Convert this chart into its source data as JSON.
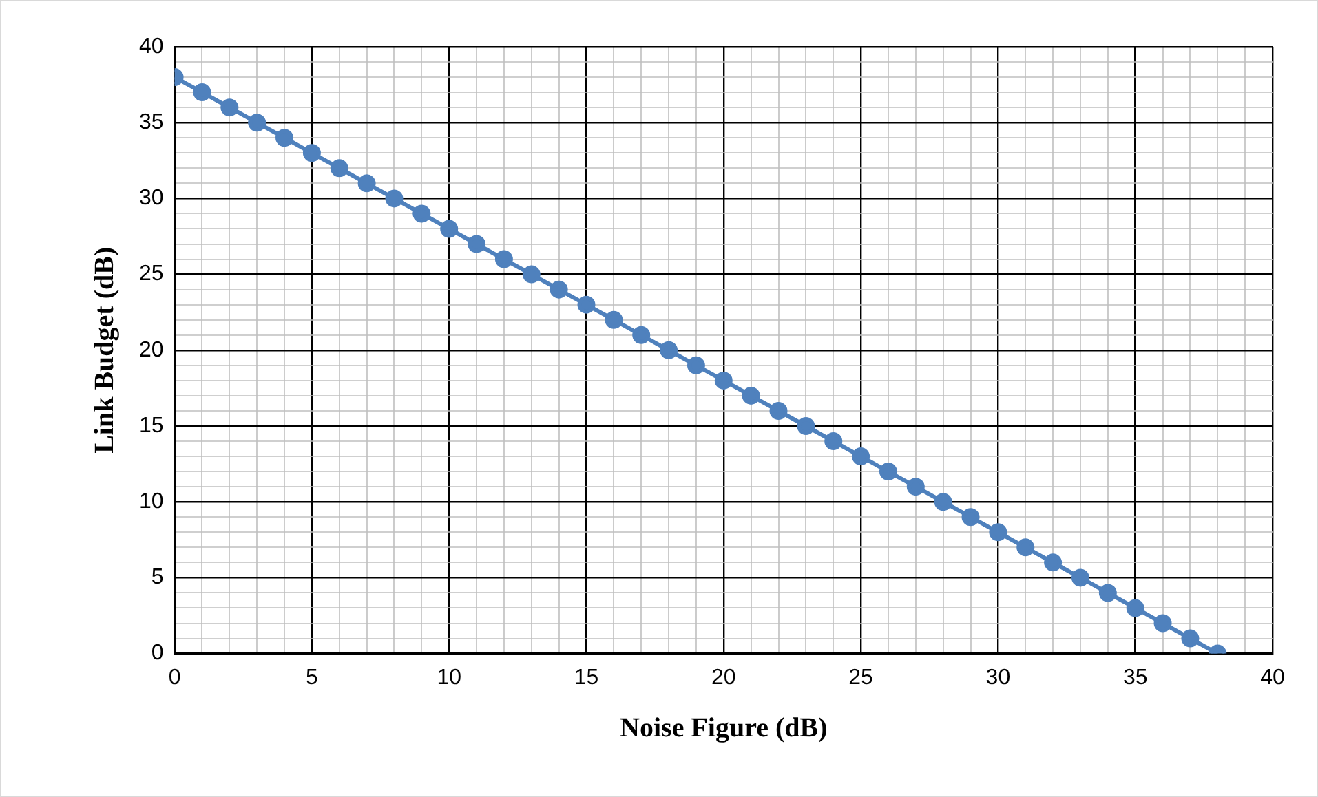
{
  "chart_data": {
    "type": "line",
    "xlabel": "Noise Figure (dB)",
    "ylabel": "Link Budget (dB)",
    "x": [
      0,
      1,
      2,
      3,
      4,
      5,
      6,
      7,
      8,
      9,
      10,
      11,
      12,
      13,
      14,
      15,
      16,
      17,
      18,
      19,
      20,
      21,
      22,
      23,
      24,
      25,
      26,
      27,
      28,
      29,
      30,
      31,
      32,
      33,
      34,
      35,
      36,
      37,
      38
    ],
    "series": [
      {
        "color": "#4f81bd",
        "values": [
          38,
          37,
          36,
          35,
          34,
          33,
          32,
          31,
          30,
          29,
          28,
          27,
          26,
          25,
          24,
          23,
          22,
          21,
          20,
          19,
          18,
          17,
          16,
          15,
          14,
          13,
          12,
          11,
          10,
          9,
          8,
          7,
          6,
          5,
          4,
          3,
          2,
          1,
          0
        ]
      }
    ],
    "xlim": [
      0,
      40
    ],
    "ylim": [
      0,
      40
    ],
    "xticks": [
      0,
      {
        "value": 1,
        "label": null
      },
      {
        "value": 2,
        "label": null
      },
      {
        "value": 3,
        "label": null
      },
      {
        "value": 4,
        "label": null
      },
      5,
      {
        "value": 6,
        "label": null
      },
      {
        "value": 7,
        "label": null
      },
      {
        "value": 8,
        "label": null
      },
      {
        "value": 9,
        "label": null
      },
      10,
      {
        "value": 11,
        "label": null
      },
      {
        "value": 12,
        "label": null
      },
      {
        "value": 13,
        "label": null
      },
      {
        "value": 14,
        "label": null
      },
      15,
      {
        "value": 16,
        "label": null
      },
      {
        "value": 17,
        "label": null
      },
      {
        "value": 18,
        "label": null
      },
      {
        "value": 19,
        "label": null
      },
      20,
      {
        "value": 21,
        "label": null
      },
      {
        "value": 22,
        "label": null
      },
      {
        "value": 23,
        "label": null
      },
      {
        "value": 24,
        "label": null
      },
      25,
      {
        "value": 26,
        "label": null
      },
      {
        "value": 27,
        "label": null
      },
      {
        "value": 28,
        "label": null
      },
      {
        "value": 29,
        "label": null
      },
      30,
      {
        "value": 31,
        "label": null
      },
      {
        "value": 32,
        "label": null
      },
      {
        "value": 33,
        "label": null
      },
      {
        "value": 34,
        "label": null
      },
      35,
      {
        "value": 36,
        "label": null
      },
      {
        "value": 37,
        "label": null
      },
      {
        "value": 38,
        "label": null
      },
      {
        "value": 39,
        "label": null
      },
      40
    ],
    "yticks": [
      0,
      {
        "value": 1,
        "label": null
      },
      {
        "value": 2,
        "label": null
      },
      {
        "value": 3,
        "label": null
      },
      {
        "value": 4,
        "label": null
      },
      5,
      {
        "value": 6,
        "label": null
      },
      {
        "value": 7,
        "label": null
      },
      {
        "value": 8,
        "label": null
      },
      {
        "value": 9,
        "label": null
      },
      10,
      {
        "value": 11,
        "label": null
      },
      {
        "value": 12,
        "label": null
      },
      {
        "value": 13,
        "label": null
      },
      {
        "value": 14,
        "label": null
      },
      15,
      {
        "value": 16,
        "label": null
      },
      {
        "value": 17,
        "label": null
      },
      {
        "value": 18,
        "label": null
      },
      {
        "value": 19,
        "label": null
      },
      20,
      {
        "value": 21,
        "label": null
      },
      {
        "value": 22,
        "label": null
      },
      {
        "value": 23,
        "label": null
      },
      {
        "value": 24,
        "label": null
      },
      25,
      {
        "value": 26,
        "label": null
      },
      {
        "value": 27,
        "label": null
      },
      {
        "value": 28,
        "label": null
      },
      {
        "value": 29,
        "label": null
      },
      30,
      {
        "value": 31,
        "label": null
      },
      {
        "value": 32,
        "label": null
      },
      {
        "value": 33,
        "label": null
      },
      {
        "value": 34,
        "label": null
      },
      35,
      {
        "value": 36,
        "label": null
      },
      {
        "value": 37,
        "label": null
      },
      {
        "value": 38,
        "label": null
      },
      {
        "value": 39,
        "label": null
      },
      40
    ],
    "grid": true,
    "legend": false,
    "marker": "circle",
    "line_style": "solid"
  }
}
